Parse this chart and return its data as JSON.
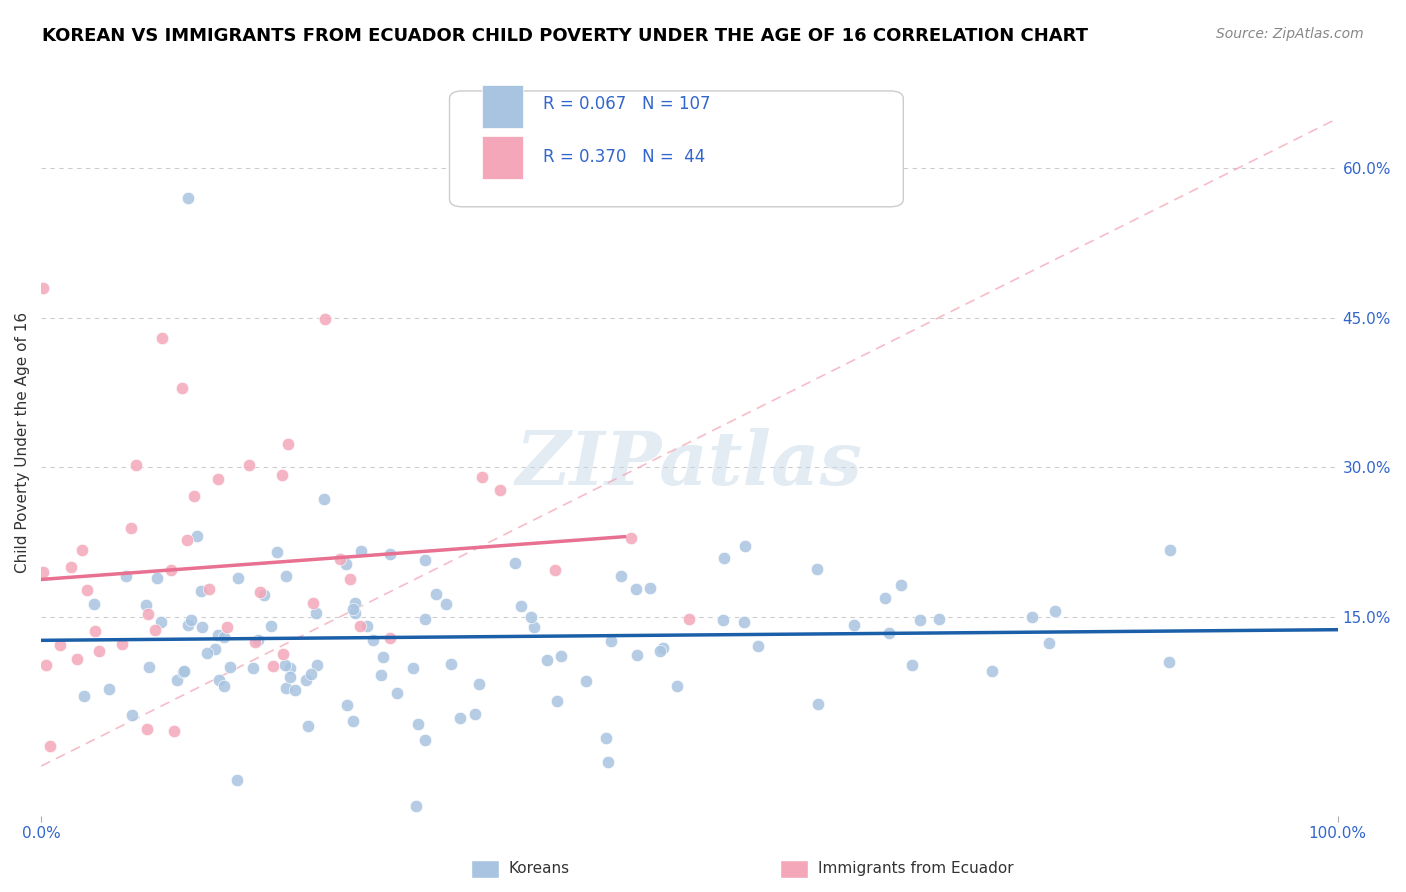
{
  "title": "KOREAN VS IMMIGRANTS FROM ECUADOR CHILD POVERTY UNDER THE AGE OF 16 CORRELATION CHART",
  "source": "Source: ZipAtlas.com",
  "ylabel": "Child Poverty Under the Age of 16",
  "xlim": [
    0.0,
    1.0
  ],
  "ylim": [
    -0.05,
    0.7
  ],
  "ytick_positions": [
    0.15,
    0.3,
    0.45,
    0.6
  ],
  "ytick_labels": [
    "15.0%",
    "30.0%",
    "45.0%",
    "60.0%"
  ],
  "korean_R": 0.067,
  "korean_N": 107,
  "ecuador_R": 0.37,
  "ecuador_N": 44,
  "korean_color": "#a8c4e0",
  "ecuador_color": "#f4a7b9",
  "korean_line_color": "#1a5fa8",
  "ecuador_line_color": "#e87090",
  "background_color": "#ffffff",
  "grid_color": "#cccccc",
  "title_color": "#000000",
  "title_fontsize": 13,
  "legend_text_color": "#3366cc",
  "watermark": "ZIPatlas",
  "legend_label_korean": "Koreans",
  "legend_label_ecuador": "Immigrants from Ecuador",
  "seed": 42
}
